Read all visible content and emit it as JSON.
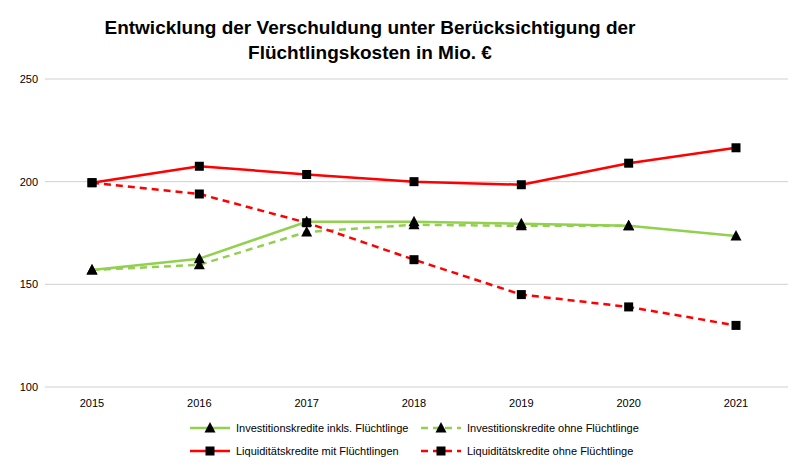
{
  "chart_data": {
    "type": "line",
    "title": "Entwicklung der Verschuldung unter Berücksichtigung der\nFlüchtlingskosten in Mio. €",
    "categories": [
      "2015",
      "2016",
      "2017",
      "2018",
      "2019",
      "2020",
      "2021"
    ],
    "ylim": [
      100,
      250
    ],
    "yticks": [
      100,
      150,
      200,
      250
    ],
    "grid": true,
    "legend": "bottom",
    "series": [
      {
        "name": "Investitionskredite inkls. Flüchtlinge",
        "color": "#92d050",
        "marker": "triangle",
        "line_style": "solid",
        "values": [
          157,
          162.5,
          180.5,
          180.5,
          179.5,
          178.5,
          173.5
        ]
      },
      {
        "name": "Investitionskredite ohne Flüchtlinge",
        "color": "#92d050",
        "marker": "triangle",
        "line_style": "dashed",
        "values": [
          157,
          159.5,
          175.5,
          179,
          178.5,
          178.5,
          null
        ]
      },
      {
        "name": "Liquiditätskredite mit Flüchtlingen",
        "color": "#ff0000",
        "marker": "square",
        "line_style": "solid",
        "values": [
          199.5,
          207.5,
          203.5,
          200,
          198.5,
          209,
          216.5
        ]
      },
      {
        "name": "Liquiditätskredite ohne Flüchtlinge",
        "color": "#ff0000",
        "marker": "square",
        "line_style": "dashed",
        "values": [
          199.5,
          194,
          180,
          162,
          145,
          139,
          130
        ]
      }
    ]
  }
}
